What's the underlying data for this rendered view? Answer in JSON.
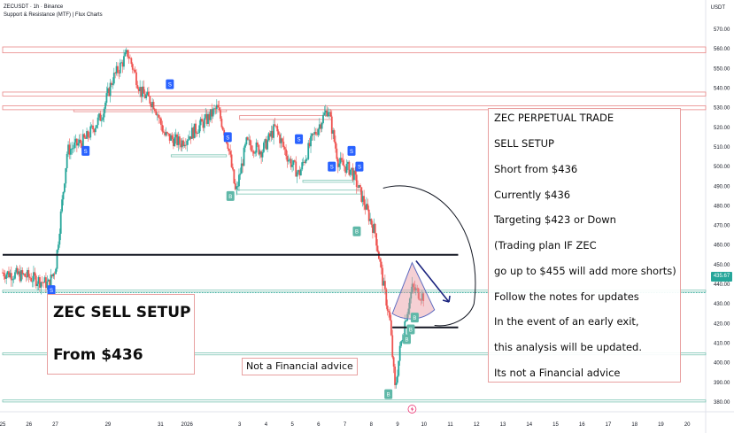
{
  "header": {
    "symbol": "ZECUSDT · 1h · Binance",
    "indicator": "Support & Resistance (MTF) | Flux Charts",
    "currency": "USDT"
  },
  "price_tag": "435.67",
  "colors": {
    "up": "#26a69a",
    "down": "#ef5350",
    "resistance": "#e88888",
    "support": "#7cc4b4",
    "signal": "#2962ff",
    "key_level": "#131722",
    "drawing": "#1a237e"
  },
  "annotations": {
    "sell_setup": {
      "line1": "ZEC SELL SETUP",
      "line2": "From $436"
    },
    "disclaimer": "Not a Financial advice",
    "plan": [
      "ZEC PERPETUAL TRADE",
      "SELL SETUP",
      "Short from $436",
      "Currently $436",
      "Targeting $423 or Down",
      "(Trading plan IF ZEC",
      "go up to $455 will add more shorts)",
      "Follow the notes for updates",
      "In the event of an early exit,",
      "this analysis will be updated.",
      "Its not a Financial advice"
    ]
  },
  "chart_data": {
    "type": "candlestick",
    "title": "ZECUSDT · 1h · Binance",
    "y_axis": {
      "position": "right",
      "range": [
        375,
        575
      ],
      "ticks": [
        570,
        560,
        550,
        540,
        530,
        520,
        510,
        500,
        490,
        480,
        470,
        460,
        450,
        440,
        430,
        420,
        410,
        400,
        390,
        380
      ],
      "tick_labels": [
        "570.00",
        "560.00",
        "550.00",
        "540.00",
        "530.00",
        "520.00",
        "510.00",
        "500.00",
        "490.00",
        "480.00",
        "470.00",
        "460.00",
        "450.00",
        "440.00",
        "430.00",
        "420.00",
        "410.00",
        "400.00",
        "390.00",
        "380.00"
      ]
    },
    "x_axis": {
      "range": [
        0,
        26.7
      ],
      "ticks": [
        0,
        1,
        2,
        4,
        6,
        7,
        9,
        10,
        11,
        12,
        13,
        14,
        15,
        16,
        17,
        18,
        19,
        20,
        21,
        22,
        23,
        24,
        25,
        26
      ],
      "tick_labels": [
        "25",
        "26",
        "27",
        "29",
        "31",
        "2026",
        "3",
        "4",
        "5",
        "6",
        "7",
        "8",
        "9",
        "10",
        "11",
        "12",
        "13",
        "14",
        "15",
        "16",
        "17",
        "18",
        "19",
        "20"
      ]
    },
    "current_price": 435.67,
    "price_path": [
      [
        0,
        446
      ],
      [
        1,
        444
      ],
      [
        1.8,
        440
      ],
      [
        2.05,
        448
      ],
      [
        2.5,
        508
      ],
      [
        3.2,
        514
      ],
      [
        3.8,
        526
      ],
      [
        4.2,
        544
      ],
      [
        4.8,
        558
      ],
      [
        5.3,
        538
      ],
      [
        5.8,
        532
      ],
      [
        6.2,
        516
      ],
      [
        6.8,
        512
      ],
      [
        7.3,
        518
      ],
      [
        7.8,
        524
      ],
      [
        8.2,
        530
      ],
      [
        8.6,
        512
      ],
      [
        8.9,
        486
      ],
      [
        9.3,
        512
      ],
      [
        9.9,
        508
      ],
      [
        10.4,
        520
      ],
      [
        10.9,
        504
      ],
      [
        11.3,
        496
      ],
      [
        11.8,
        514
      ],
      [
        12.4,
        530
      ],
      [
        12.8,
        502
      ],
      [
        13.3,
        498
      ],
      [
        13.7,
        484
      ],
      [
        14.2,
        466
      ],
      [
        14.5,
        440
      ],
      [
        14.75,
        422
      ],
      [
        14.95,
        386
      ],
      [
        15.15,
        408
      ],
      [
        15.35,
        423
      ],
      [
        15.6,
        438
      ],
      [
        15.8,
        436
      ],
      [
        16.0,
        434
      ]
    ],
    "resistance_zones": [
      {
        "from": 0,
        "to": 26.7,
        "low": 558,
        "high": 561
      },
      {
        "from": 0,
        "to": 26.7,
        "low": 536,
        "high": 538
      },
      {
        "from": 0,
        "to": 26.7,
        "low": 529,
        "high": 531
      },
      {
        "from": 2.7,
        "to": 8.5,
        "low": 528,
        "high": 529
      },
      {
        "from": 9.0,
        "to": 12.5,
        "low": 524,
        "high": 526
      }
    ],
    "support_zones": [
      {
        "from": 0,
        "to": 26.7,
        "low": 436,
        "high": 437
      },
      {
        "from": 0,
        "to": 26.7,
        "low": 404,
        "high": 405
      },
      {
        "from": 0,
        "to": 26.7,
        "low": 380,
        "high": 381
      },
      {
        "from": 6.4,
        "to": 8.5,
        "low": 505,
        "high": 506
      },
      {
        "from": 8.9,
        "to": 13.6,
        "low": 486,
        "high": 488
      },
      {
        "from": 11.4,
        "to": 13.3,
        "low": 492,
        "high": 493
      }
    ],
    "key_levels": [
      {
        "price": 455,
        "from": 0,
        "to": 17.3
      },
      {
        "price": 418,
        "from": 14.8,
        "to": 17.3
      }
    ],
    "signals": [
      {
        "x": 1.85,
        "price": 437,
        "label": "S",
        "side": "sell"
      },
      {
        "x": 3.15,
        "price": 508,
        "label": "S",
        "side": "sell"
      },
      {
        "x": 6.35,
        "price": 542,
        "label": "S",
        "side": "sell"
      },
      {
        "x": 8.55,
        "price": 515,
        "label": "S",
        "side": "sell"
      },
      {
        "x": 11.25,
        "price": 514,
        "label": "S",
        "side": "sell"
      },
      {
        "x": 12.5,
        "price": 500,
        "label": "S",
        "side": "sell"
      },
      {
        "x": 13.25,
        "price": 508,
        "label": "S",
        "side": "sell"
      },
      {
        "x": 13.55,
        "price": 500,
        "label": "S",
        "side": "sell"
      },
      {
        "x": 8.65,
        "price": 485,
        "label": "B",
        "side": "buy"
      },
      {
        "x": 13.45,
        "price": 467,
        "label": "B",
        "side": "buy"
      },
      {
        "x": 14.65,
        "price": 384,
        "label": "B",
        "side": "buy"
      },
      {
        "x": 15.35,
        "price": 412,
        "label": "B",
        "side": "buy"
      },
      {
        "x": 15.5,
        "price": 417,
        "label": "B",
        "side": "buy"
      },
      {
        "x": 15.65,
        "price": 423,
        "label": "B",
        "side": "buy"
      }
    ]
  }
}
